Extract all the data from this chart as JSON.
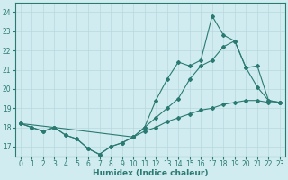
{
  "xlabel": "Humidex (Indice chaleur)",
  "xlim": [
    -0.5,
    23.5
  ],
  "ylim": [
    16.5,
    24.5
  ],
  "yticks": [
    17,
    18,
    19,
    20,
    21,
    22,
    23,
    24
  ],
  "xticks": [
    0,
    1,
    2,
    3,
    4,
    5,
    6,
    7,
    8,
    9,
    10,
    11,
    12,
    13,
    14,
    15,
    16,
    17,
    18,
    19,
    20,
    21,
    22,
    23
  ],
  "bg_color": "#d0ecf0",
  "line_color": "#2a7a72",
  "grid_color": "#b8d8de",
  "series": [
    {
      "x": [
        0,
        1,
        2,
        3,
        4,
        5,
        6,
        7,
        8,
        9,
        10,
        11,
        12,
        13,
        14,
        15,
        16,
        17,
        18,
        19,
        20,
        21,
        22,
        23
      ],
      "y": [
        18.2,
        18.0,
        17.8,
        18.0,
        17.6,
        17.4,
        16.9,
        16.6,
        17.0,
        17.2,
        17.5,
        18.0,
        19.4,
        20.5,
        21.4,
        21.2,
        21.5,
        23.8,
        22.8,
        22.5,
        21.1,
        21.2,
        19.4,
        19.3
      ]
    },
    {
      "x": [
        0,
        1,
        2,
        3,
        4,
        5,
        6,
        7,
        8,
        9,
        10,
        11,
        12,
        13,
        14,
        15,
        16,
        17,
        18,
        19,
        20,
        21,
        22,
        23
      ],
      "y": [
        18.2,
        18.0,
        17.8,
        18.0,
        17.6,
        17.4,
        16.9,
        16.6,
        17.0,
        17.2,
        17.5,
        18.0,
        18.5,
        19.0,
        19.5,
        20.5,
        21.2,
        21.5,
        22.2,
        22.5,
        21.1,
        20.1,
        19.4,
        19.3
      ]
    },
    {
      "x": [
        0,
        3,
        10,
        11,
        12,
        13,
        14,
        15,
        16,
        17,
        18,
        19,
        20,
        21,
        22,
        23
      ],
      "y": [
        18.2,
        18.0,
        17.5,
        17.8,
        18.0,
        18.3,
        18.5,
        18.7,
        18.9,
        19.0,
        19.2,
        19.3,
        19.4,
        19.4,
        19.3,
        19.3
      ]
    }
  ]
}
